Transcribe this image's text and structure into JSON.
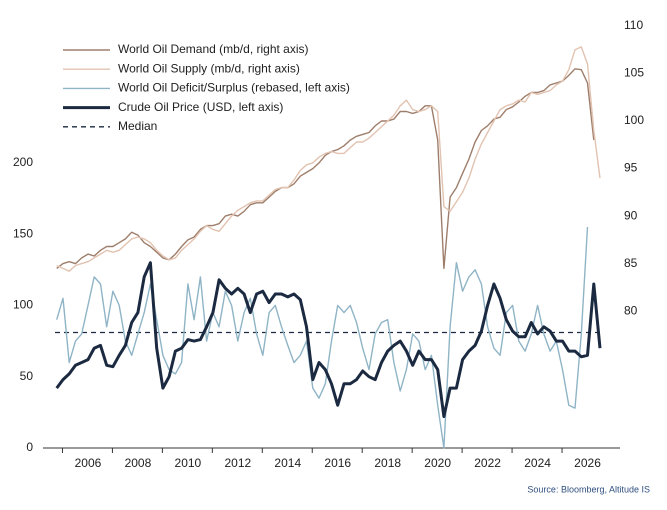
{
  "chart_data": {
    "type": "line",
    "source": "Source: Bloomberg, Altitude IS",
    "x": [
      2004.75,
      2005,
      2005.25,
      2005.5,
      2005.75,
      2006,
      2006.25,
      2006.5,
      2006.75,
      2007,
      2007.25,
      2007.5,
      2007.75,
      2008,
      2008.25,
      2008.5,
      2008.75,
      2009,
      2009.25,
      2009.5,
      2009.75,
      2010,
      2010.25,
      2010.5,
      2010.75,
      2011,
      2011.25,
      2011.5,
      2011.75,
      2012,
      2012.25,
      2012.5,
      2012.75,
      2013,
      2013.25,
      2013.5,
      2013.75,
      2014,
      2014.25,
      2014.5,
      2014.75,
      2015,
      2015.25,
      2015.5,
      2015.75,
      2016,
      2016.25,
      2016.5,
      2016.75,
      2017,
      2017.25,
      2017.5,
      2017.75,
      2018,
      2018.25,
      2018.5,
      2018.75,
      2019,
      2019.25,
      2019.5,
      2019.75,
      2020,
      2020.25,
      2020.5,
      2020.75,
      2021,
      2021.25,
      2021.5,
      2021.75,
      2022,
      2022.25,
      2022.5,
      2022.75,
      2023,
      2023.25,
      2023.5,
      2023.75,
      2024,
      2024.25,
      2024.5,
      2024.75,
      2025,
      2025.25,
      2025.5,
      2025.75,
      2026,
      2026.25,
      2026.5
    ],
    "series": [
      {
        "name": "World Oil Demand (mb/d, right axis)",
        "color": "#9e7e6b",
        "axis": "y2",
        "width": 1.4,
        "values": [
          84.5,
          85.0,
          85.2,
          85.0,
          85.6,
          86.0,
          85.8,
          86.4,
          86.8,
          86.8,
          87.2,
          87.6,
          88.3,
          88.0,
          87.2,
          86.8,
          86.2,
          85.6,
          85.4,
          86.0,
          86.8,
          87.5,
          87.8,
          88.6,
          89.0,
          89.0,
          89.2,
          90.0,
          90.2,
          90.0,
          90.5,
          91.2,
          91.4,
          91.4,
          92.0,
          92.6,
          93.0,
          93.0,
          93.4,
          94.2,
          94.6,
          95.0,
          95.6,
          96.4,
          96.8,
          97.0,
          97.4,
          98.0,
          98.4,
          98.6,
          98.8,
          99.5,
          100.0,
          100.0,
          100.2,
          101.0,
          101.0,
          100.8,
          101.0,
          101.6,
          101.6,
          98.0,
          84.5,
          92.0,
          93.0,
          94.5,
          96.0,
          97.8,
          99.0,
          99.5,
          100.2,
          100.4,
          101.2,
          101.5,
          102.0,
          102.6,
          103.0,
          103.0,
          103.2,
          103.8,
          104.0,
          104.2,
          104.8,
          105.5,
          105.4,
          104.0,
          98.0,
          null
        ]
      },
      {
        "name": "World Oil Supply (mb/d, right axis)",
        "color": "#e2c3b1",
        "axis": "y2",
        "width": 1.4,
        "values": [
          84.8,
          84.5,
          84.2,
          84.8,
          85.0,
          85.2,
          85.6,
          86.0,
          86.4,
          86.2,
          86.4,
          87.0,
          87.6,
          87.8,
          87.6,
          87.2,
          86.4,
          85.8,
          85.4,
          85.6,
          86.4,
          87.0,
          87.6,
          88.4,
          89.0,
          88.6,
          88.4,
          89.2,
          90.0,
          90.6,
          91.0,
          91.4,
          91.6,
          91.6,
          92.2,
          92.8,
          93.0,
          93.0,
          93.8,
          94.8,
          95.4,
          95.6,
          96.2,
          96.6,
          96.8,
          96.6,
          96.6,
          97.2,
          97.8,
          97.8,
          98.2,
          98.8,
          99.4,
          100.0,
          100.6,
          101.6,
          102.2,
          101.2,
          101.0,
          101.2,
          101.6,
          101.0,
          91.0,
          90.5,
          91.5,
          92.5,
          94.0,
          96.0,
          97.6,
          98.8,
          100.0,
          101.2,
          101.6,
          101.8,
          102.2,
          102.0,
          103.0,
          102.8,
          103.0,
          103.2,
          103.8,
          104.2,
          105.4,
          107.5,
          107.8,
          106.0,
          99.0,
          94.0
        ]
      },
      {
        "name": "World Oil Deficit/Surplus (rebased, left axis)",
        "color": "#8fb4c6",
        "axis": "y",
        "width": 1.4,
        "values": [
          90,
          105,
          60,
          75,
          80,
          100,
          120,
          115,
          85,
          110,
          100,
          75,
          65,
          80,
          95,
          115,
          90,
          65,
          55,
          52,
          60,
          115,
          90,
          120,
          75,
          95,
          85,
          110,
          100,
          75,
          95,
          105,
          80,
          65,
          95,
          100,
          85,
          72,
          60,
          65,
          75,
          42,
          35,
          45,
          75,
          100,
          95,
          100,
          88,
          70,
          55,
          80,
          88,
          90,
          60,
          40,
          55,
          80,
          75,
          55,
          65,
          30,
          0,
          85,
          130,
          110,
          120,
          125,
          115,
          85,
          70,
          65,
          95,
          100,
          75,
          68,
          80,
          100,
          80,
          68,
          75,
          55,
          30,
          28,
          80,
          155,
          null,
          null
        ]
      },
      {
        "name": "Crude Oil Price (USD, left axis)",
        "color": "#1b2a41",
        "axis": "y",
        "width": 3,
        "values": [
          42,
          48,
          52,
          58,
          60,
          62,
          70,
          72,
          58,
          57,
          65,
          72,
          88,
          95,
          120,
          130,
          70,
          42,
          50,
          68,
          70,
          76,
          75,
          76,
          85,
          95,
          118,
          112,
          108,
          112,
          108,
          95,
          108,
          110,
          102,
          108,
          108,
          106,
          108,
          104,
          85,
          48,
          60,
          55,
          45,
          30,
          45,
          45,
          48,
          54,
          50,
          48,
          60,
          68,
          72,
          75,
          68,
          58,
          68,
          62,
          62,
          55,
          22,
          42,
          42,
          62,
          68,
          72,
          82,
          100,
          115,
          105,
          90,
          82,
          78,
          78,
          88,
          80,
          85,
          82,
          75,
          75,
          68,
          68,
          64,
          65,
          115,
          70
        ]
      }
    ],
    "median": {
      "name": "Median",
      "color": "#1b2a41",
      "value": 81
    },
    "xlim": [
      2004.2,
      2027.3
    ],
    "xticks": [
      2006,
      2008,
      2010,
      2012,
      2014,
      2016,
      2018,
      2020,
      2022,
      2024,
      2026
    ],
    "ylim": [
      0,
      296
    ],
    "yticks": [
      0,
      50,
      100,
      150,
      200
    ],
    "y2lim": [
      65.6,
      110
    ],
    "y2ticks": [
      80,
      85,
      90,
      95,
      100,
      105,
      110
    ],
    "legend": "upper left"
  }
}
